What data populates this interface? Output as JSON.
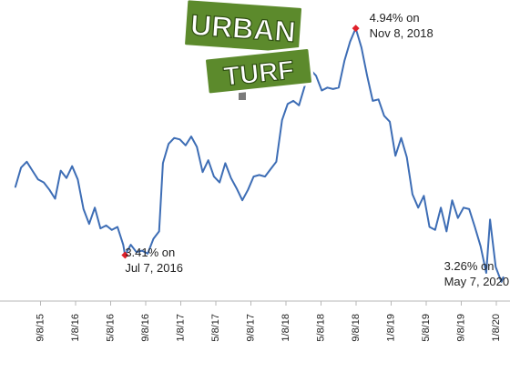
{
  "chart_data": {
    "type": "line",
    "title": "",
    "xlabel": "",
    "ylabel": "",
    "ylim": [
      3.1,
      5.1
    ],
    "grid": false,
    "x_tick_labels": [
      "9/8/15",
      "1/8/16",
      "5/8/16",
      "9/8/16",
      "1/8/17",
      "5/8/17",
      "9/8/17",
      "1/8/18",
      "5/8/18",
      "9/8/18",
      "1/8/19",
      "5/8/19",
      "9/8/19",
      "1/8/20"
    ],
    "series": [
      {
        "color": "#3d6db5",
        "points": [
          [
            "2015-05-28",
            3.87
          ],
          [
            "2015-06-18",
            4.0
          ],
          [
            "2015-07-09",
            4.04
          ],
          [
            "2015-07-30",
            3.98
          ],
          [
            "2015-08-20",
            3.92
          ],
          [
            "2015-09-10",
            3.9
          ],
          [
            "2015-10-01",
            3.85
          ],
          [
            "2015-10-22",
            3.79
          ],
          [
            "2015-11-12",
            3.98
          ],
          [
            "2015-12-03",
            3.93
          ],
          [
            "2015-12-24",
            4.01
          ],
          [
            "2016-01-14",
            3.92
          ],
          [
            "2016-02-04",
            3.72
          ],
          [
            "2016-02-25",
            3.62
          ],
          [
            "2016-03-17",
            3.73
          ],
          [
            "2016-04-07",
            3.59
          ],
          [
            "2016-04-28",
            3.61
          ],
          [
            "2016-05-19",
            3.58
          ],
          [
            "2016-06-09",
            3.6
          ],
          [
            "2016-06-30",
            3.48
          ],
          [
            "2016-07-07",
            3.41
          ],
          [
            "2016-07-28",
            3.48
          ],
          [
            "2016-08-18",
            3.43
          ],
          [
            "2016-09-08",
            3.44
          ],
          [
            "2016-09-29",
            3.42
          ],
          [
            "2016-10-20",
            3.52
          ],
          [
            "2016-11-10",
            3.57
          ],
          [
            "2016-11-24",
            4.03
          ],
          [
            "2016-12-15",
            4.16
          ],
          [
            "2017-01-05",
            4.2
          ],
          [
            "2017-01-26",
            4.19
          ],
          [
            "2017-02-16",
            4.15
          ],
          [
            "2017-03-09",
            4.21
          ],
          [
            "2017-03-30",
            4.14
          ],
          [
            "2017-04-20",
            3.97
          ],
          [
            "2017-05-11",
            4.05
          ],
          [
            "2017-06-01",
            3.94
          ],
          [
            "2017-06-22",
            3.9
          ],
          [
            "2017-07-13",
            4.03
          ],
          [
            "2017-08-03",
            3.93
          ],
          [
            "2017-08-24",
            3.86
          ],
          [
            "2017-09-14",
            3.78
          ],
          [
            "2017-10-05",
            3.85
          ],
          [
            "2017-10-26",
            3.94
          ],
          [
            "2017-11-16",
            3.95
          ],
          [
            "2017-12-07",
            3.94
          ],
          [
            "2017-12-28",
            3.99
          ],
          [
            "2018-01-18",
            4.04
          ],
          [
            "2018-02-08",
            4.32
          ],
          [
            "2018-03-01",
            4.43
          ],
          [
            "2018-03-22",
            4.45
          ],
          [
            "2018-04-12",
            4.42
          ],
          [
            "2018-05-03",
            4.55
          ],
          [
            "2018-05-24",
            4.66
          ],
          [
            "2018-06-14",
            4.62
          ],
          [
            "2018-07-05",
            4.52
          ],
          [
            "2018-07-26",
            4.54
          ],
          [
            "2018-08-16",
            4.53
          ],
          [
            "2018-09-06",
            4.54
          ],
          [
            "2018-09-27",
            4.72
          ],
          [
            "2018-10-18",
            4.85
          ],
          [
            "2018-11-08",
            4.94
          ],
          [
            "2018-11-29",
            4.81
          ],
          [
            "2018-12-20",
            4.62
          ],
          [
            "2019-01-10",
            4.45
          ],
          [
            "2019-01-31",
            4.46
          ],
          [
            "2019-02-21",
            4.35
          ],
          [
            "2019-03-14",
            4.31
          ],
          [
            "2019-04-04",
            4.08
          ],
          [
            "2019-04-25",
            4.2
          ],
          [
            "2019-05-16",
            4.07
          ],
          [
            "2019-06-06",
            3.82
          ],
          [
            "2019-06-27",
            3.73
          ],
          [
            "2019-07-18",
            3.81
          ],
          [
            "2019-08-08",
            3.6
          ],
          [
            "2019-08-29",
            3.58
          ],
          [
            "2019-09-19",
            3.73
          ],
          [
            "2019-10-10",
            3.57
          ],
          [
            "2019-10-31",
            3.78
          ],
          [
            "2019-11-21",
            3.66
          ],
          [
            "2019-12-12",
            3.73
          ],
          [
            "2020-01-02",
            3.72
          ],
          [
            "2020-01-23",
            3.6
          ],
          [
            "2020-02-13",
            3.47
          ],
          [
            "2020-03-05",
            3.29
          ],
          [
            "2020-03-19",
            3.65
          ],
          [
            "2020-04-09",
            3.33
          ],
          [
            "2020-04-30",
            3.23
          ],
          [
            "2020-05-07",
            3.26
          ]
        ]
      }
    ],
    "annotations": [
      {
        "id": "low",
        "date": "2016-07-07",
        "value": 3.41,
        "line1": "3.41% on",
        "line2": "Jul 7, 2016",
        "marker": true
      },
      {
        "id": "high",
        "date": "2018-11-08",
        "value": 4.94,
        "line1": "4.94% on",
        "line2": "Nov 8, 2018",
        "marker": true
      },
      {
        "id": "latest",
        "date": "2020-05-07",
        "value": 3.26,
        "line1": "3.26% on",
        "line2": "May 7, 2020",
        "marker": false
      }
    ],
    "marker_color": "#e0202a"
  },
  "logo": {
    "line1": "URBAN",
    "line2": "TURF",
    "bg_color": "#5c8a2c",
    "border_color": "#ffffff",
    "post_color": "#7a7a7a"
  }
}
